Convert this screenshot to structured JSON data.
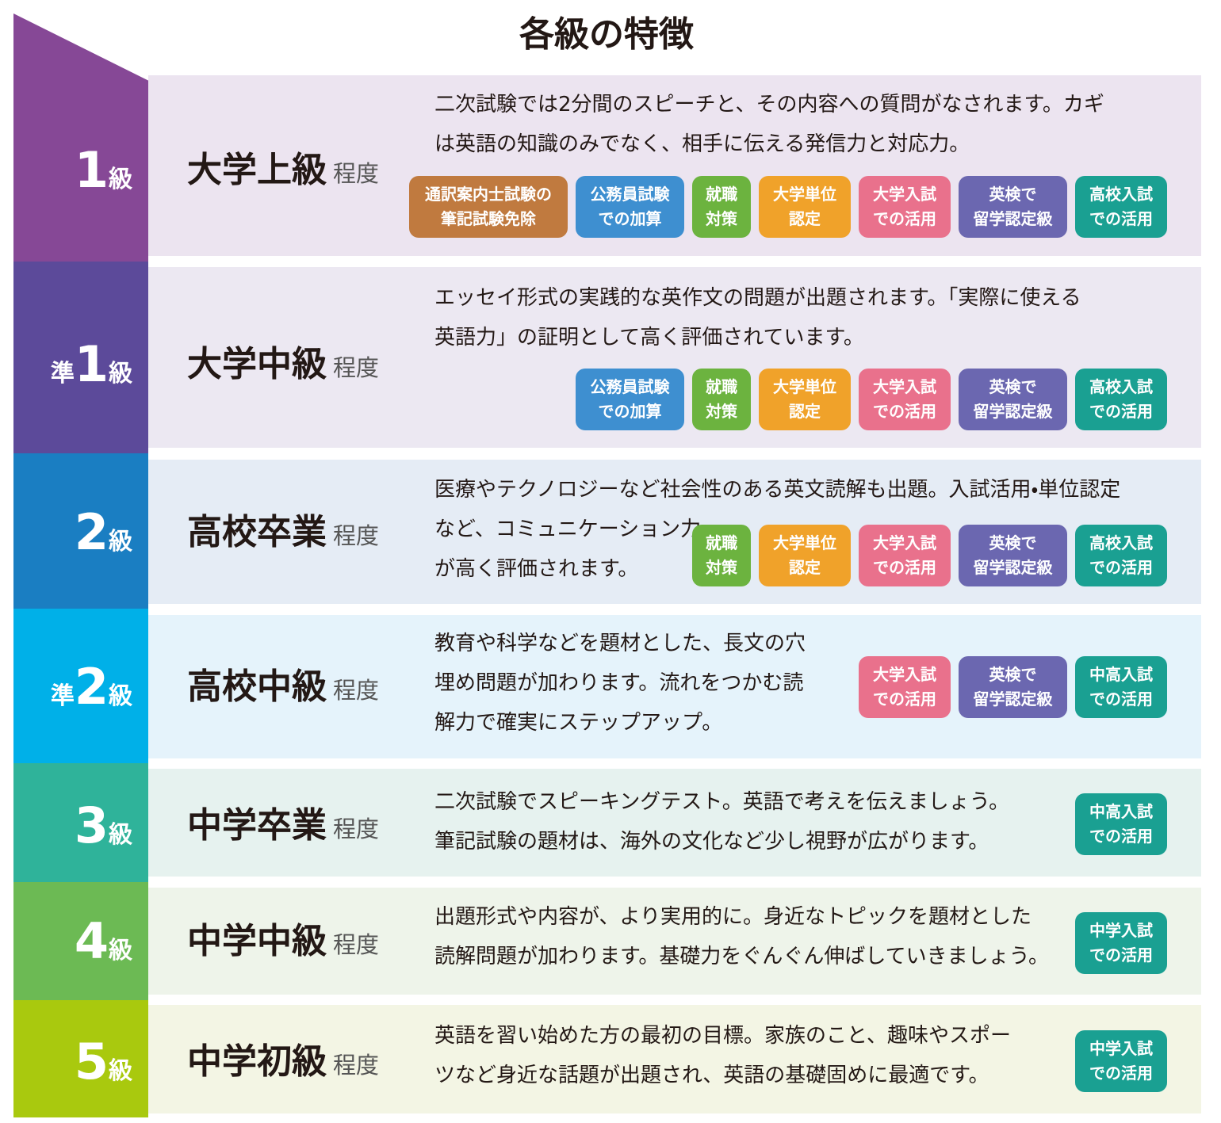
{
  "title": "各級の特徴",
  "rows": [
    {
      "grade": {
        "prefix": null,
        "number": "1",
        "unit": "級"
      },
      "level": "大学上級",
      "suffix": "程度",
      "description": [
        "二次試験では2分間のスピーチと、その内容への質問がなされます。カギ",
        "は英語の知識のみでなく、相手に伝える発信力と対応力。"
      ],
      "tags": [
        {
          "lines": [
            "通訳案内士試験の",
            "筆記試験免除"
          ],
          "color": "#c07a3f"
        },
        {
          "lines": [
            "公務員試験",
            "での加算"
          ],
          "color": "#3e8fd0"
        },
        {
          "lines": [
            "就職",
            "対策"
          ],
          "color": "#6cb33f"
        },
        {
          "lines": [
            "大学単位",
            "認定"
          ],
          "color": "#f0a22a"
        },
        {
          "lines": [
            "大学入試",
            "での活用"
          ],
          "color": "#e9718c"
        },
        {
          "lines": [
            "英検で",
            "留学認定級"
          ],
          "color": "#6b67b0"
        },
        {
          "lines": [
            "高校入試",
            "での活用"
          ],
          "color": "#1aa092"
        }
      ]
    },
    {
      "grade": {
        "prefix": "準",
        "number": "1",
        "unit": "級"
      },
      "level": "大学中級",
      "suffix": "程度",
      "description": [
        "エッセイ形式の実践的な英作文の問題が出題されます。「実際に使える",
        "英語力」の証明として高く評価されています。"
      ],
      "tags": [
        {
          "lines": [
            "公務員試験",
            "での加算"
          ],
          "color": "#3e8fd0"
        },
        {
          "lines": [
            "就職",
            "対策"
          ],
          "color": "#6cb33f"
        },
        {
          "lines": [
            "大学単位",
            "認定"
          ],
          "color": "#f0a22a"
        },
        {
          "lines": [
            "大学入試",
            "での活用"
          ],
          "color": "#e9718c"
        },
        {
          "lines": [
            "英検で",
            "留学認定級"
          ],
          "color": "#6b67b0"
        },
        {
          "lines": [
            "高校入試",
            "での活用"
          ],
          "color": "#1aa092"
        }
      ]
    },
    {
      "grade": {
        "prefix": null,
        "number": "2",
        "unit": "級"
      },
      "level": "高校卒業",
      "suffix": "程度",
      "description": [
        "医療やテクノロジーなど社会性のある英文読解も出題。入試活用・単位認定",
        "など、コミュニケーション力",
        "が高く評価されます。"
      ],
      "tags": [
        {
          "lines": [
            "就職",
            "対策"
          ],
          "color": "#6cb33f"
        },
        {
          "lines": [
            "大学単位",
            "認定"
          ],
          "color": "#f0a22a"
        },
        {
          "lines": [
            "大学入試",
            "での活用"
          ],
          "color": "#e9718c"
        },
        {
          "lines": [
            "英検で",
            "留学認定級"
          ],
          "color": "#6b67b0"
        },
        {
          "lines": [
            "高校入試",
            "での活用"
          ],
          "color": "#1aa092"
        }
      ]
    },
    {
      "grade": {
        "prefix": "準",
        "number": "2",
        "unit": "級"
      },
      "level": "高校中級",
      "suffix": "程度",
      "description": [
        "教育や科学などを題材とした、長文の穴",
        "埋め問題が加わります。流れをつかむ読",
        "解力で確実にステップアップ。"
      ],
      "tags": [
        {
          "lines": [
            "大学入試",
            "での活用"
          ],
          "color": "#e9718c"
        },
        {
          "lines": [
            "英検で",
            "留学認定級"
          ],
          "color": "#6b67b0"
        },
        {
          "lines": [
            "中高入試",
            "での活用"
          ],
          "color": "#1aa092"
        }
      ]
    },
    {
      "grade": {
        "prefix": null,
        "number": "3",
        "unit": "級"
      },
      "level": "中学卒業",
      "suffix": "程度",
      "description": [
        "二次試験でスピーキングテスト。英語で考えを伝えましょう。",
        "筆記試験の題材は、海外の文化など少し視野が広がります。"
      ],
      "tags": [
        {
          "lines": [
            "中高入試",
            "での活用"
          ],
          "color": "#1aa092"
        }
      ]
    },
    {
      "grade": {
        "prefix": null,
        "number": "4",
        "unit": "級"
      },
      "level": "中学中級",
      "suffix": "程度",
      "description": [
        "出題形式や内容が、より実用的に。身近なトピックを題材とした",
        "読解問題が加わります。基礎力をぐんぐん伸ばしていきましょう。"
      ],
      "tags": [
        {
          "lines": [
            "中学入試",
            "での活用"
          ],
          "color": "#1aa092"
        }
      ]
    },
    {
      "grade": {
        "prefix": null,
        "number": "5",
        "unit": "級"
      },
      "level": "中学初級",
      "suffix": "程度",
      "description": [
        "英語を習い始めた方の最初の目標。家族のこと、趣味やスポー",
        "ツなど身近な話題が出題され、英語の基礎固めに最適です。"
      ],
      "tags": [
        {
          "lines": [
            "中学入試",
            "での活用"
          ],
          "color": "#1aa092"
        }
      ]
    }
  ]
}
